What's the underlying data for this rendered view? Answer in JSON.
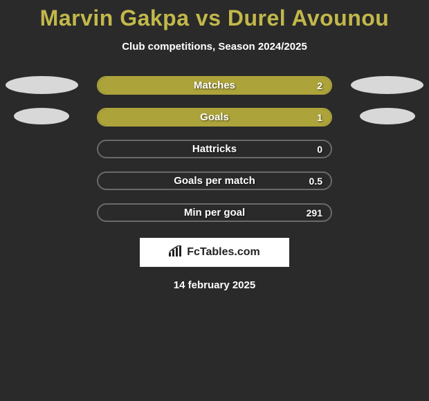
{
  "title_text": "Marvin Gakpa vs Durel Avounou",
  "title_color": "#c2b84a",
  "subtitle": "Club competitions, Season 2024/2025",
  "accent_olive": "#aca33a",
  "ellipse_color": "#d8d8d8",
  "border_active": "#aca33a",
  "border_inactive": "#6a6a6a",
  "stats": [
    {
      "label": "Matches",
      "value": "2",
      "fill_pct": 100,
      "filled": true
    },
    {
      "label": "Goals",
      "value": "1",
      "fill_pct": 100,
      "filled": true
    },
    {
      "label": "Hattricks",
      "value": "0",
      "fill_pct": 0,
      "filled": false
    },
    {
      "label": "Goals per match",
      "value": "0.5",
      "fill_pct": 0,
      "filled": false
    },
    {
      "label": "Min per goal",
      "value": "291",
      "fill_pct": 0,
      "filled": false
    }
  ],
  "brand": {
    "text": "FcTables.com",
    "icon_color": "#222222"
  },
  "date": "14 february 2025",
  "background": "#2a2a2a"
}
